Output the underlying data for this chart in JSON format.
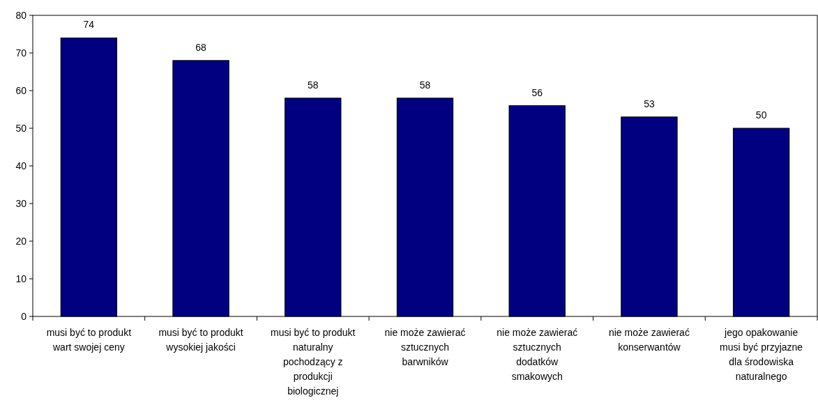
{
  "chart_data": {
    "type": "bar",
    "categories": [
      "musi być to produkt wart swojej ceny",
      "musi być to produkt wysokiej jakości",
      "musi być to produkt naturalny pochodzący z produkcji biologicznej",
      "nie może zawierać sztucznych barwników",
      "nie może zawierać sztucznych dodatków smakowych",
      "nie może zawierać konserwantów",
      "jego opakowanie musi być przyjazne dla środowiska naturalnego"
    ],
    "values": [
      74,
      68,
      58,
      58,
      56,
      53,
      50
    ],
    "color": "#000080",
    "ylim": [
      0,
      80
    ],
    "yticks": [
      0,
      10,
      20,
      30,
      40,
      50,
      60,
      70,
      80
    ],
    "data_labels": true,
    "grid": false
  }
}
